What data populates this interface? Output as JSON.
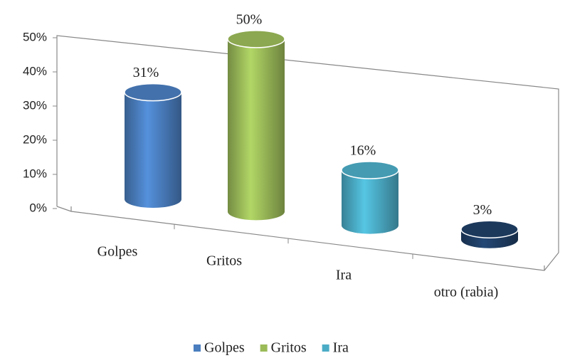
{
  "chart_data": {
    "type": "cylinder",
    "categories": [
      "Golpes",
      "Gritos",
      "Ira",
      "otro (rabia)"
    ],
    "values": [
      31,
      50,
      16,
      3
    ],
    "value_labels": [
      "31%",
      "50%",
      "16%",
      "3%"
    ],
    "colors": [
      "#4a7ebf",
      "#9bbb59",
      "#4bacc6",
      "#1f3f66"
    ],
    "ylim": [
      0,
      50
    ],
    "yticks": [
      {
        "value": 0,
        "label": "0%"
      },
      {
        "value": 10,
        "label": "10%"
      },
      {
        "value": 20,
        "label": "20%"
      },
      {
        "value": 30,
        "label": "30%"
      },
      {
        "value": 40,
        "label": "40%"
      },
      {
        "value": 50,
        "label": "50%"
      }
    ],
    "legend": [
      {
        "name": "Golpes",
        "color": "#4a7ebf"
      },
      {
        "name": "Gritos",
        "color": "#9bbb59"
      },
      {
        "name": "Ira",
        "color": "#4bacc6"
      }
    ]
  }
}
